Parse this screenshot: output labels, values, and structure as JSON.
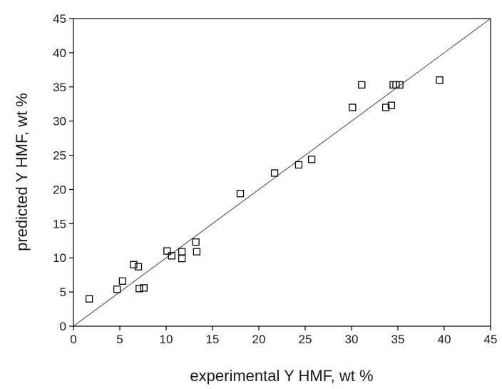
{
  "chart_data": {
    "type": "scatter",
    "title": "",
    "xlabel": "experimental Y HMF, wt %",
    "ylabel": "predicted Y HMF, wt %",
    "xlim": [
      0,
      45
    ],
    "ylim": [
      0,
      45
    ],
    "x_ticks": [
      0,
      5,
      10,
      15,
      20,
      25,
      30,
      35,
      40,
      45
    ],
    "y_ticks": [
      0,
      5,
      10,
      15,
      20,
      25,
      30,
      35,
      40,
      45
    ],
    "grid": false,
    "reference_line": {
      "type": "parity",
      "slope": 1,
      "intercept": 0
    },
    "marker": "open-square",
    "colors": {
      "marker_stroke": "#000000",
      "line": "#444444",
      "axis": "#000000"
    },
    "series": [
      {
        "points": [
          [
            1.7,
            4.0
          ],
          [
            4.7,
            5.4
          ],
          [
            5.3,
            6.6
          ],
          [
            6.5,
            9.0
          ],
          [
            7.0,
            8.7
          ],
          [
            7.1,
            5.5
          ],
          [
            7.6,
            5.6
          ],
          [
            10.1,
            11.0
          ],
          [
            10.6,
            10.3
          ],
          [
            11.7,
            10.9
          ],
          [
            11.7,
            9.9
          ],
          [
            13.2,
            12.3
          ],
          [
            13.3,
            10.9
          ],
          [
            18.0,
            19.4
          ],
          [
            21.7,
            22.4
          ],
          [
            24.3,
            23.6
          ],
          [
            25.7,
            24.4
          ],
          [
            30.1,
            32.0
          ],
          [
            31.1,
            35.3
          ],
          [
            33.7,
            32.0
          ],
          [
            34.3,
            32.3
          ],
          [
            34.5,
            35.3
          ],
          [
            34.8,
            35.3
          ],
          [
            35.2,
            35.3
          ],
          [
            39.5,
            36.0
          ]
        ]
      }
    ]
  }
}
